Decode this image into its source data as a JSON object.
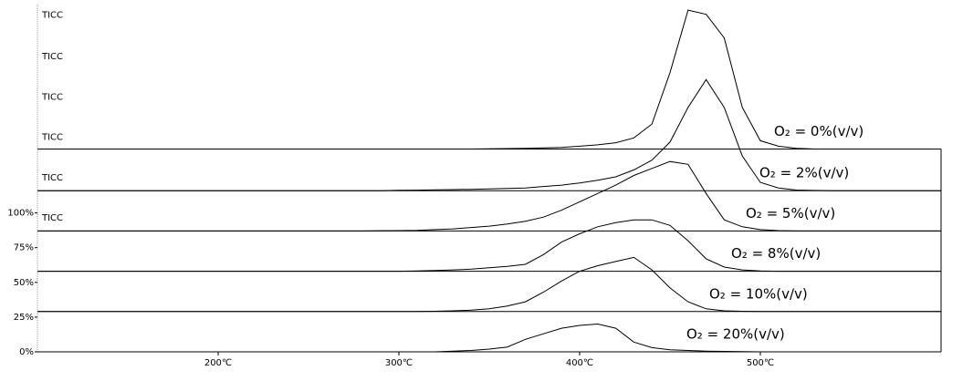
{
  "chart_data": {
    "type": "line",
    "x": [
      100,
      110,
      120,
      130,
      140,
      150,
      160,
      170,
      180,
      190,
      200,
      210,
      220,
      230,
      240,
      250,
      260,
      270,
      280,
      290,
      300,
      310,
      320,
      330,
      340,
      350,
      360,
      370,
      380,
      390,
      400,
      410,
      420,
      430,
      440,
      450,
      460,
      470,
      480,
      490,
      500,
      510,
      520,
      530,
      540,
      550,
      560,
      570,
      580,
      590,
      600
    ],
    "xlim": [
      100,
      600
    ],
    "xticks": [
      {
        "value": 200,
        "label": "200℃"
      },
      {
        "value": 300,
        "label": "300℃"
      },
      {
        "value": 400,
        "label": "400℃"
      },
      {
        "value": 500,
        "label": "500℃"
      }
    ],
    "ylim": [
      0,
      250
    ],
    "yticks": [
      {
        "value": 0,
        "label": "0%"
      },
      {
        "value": 25,
        "label": "25%"
      },
      {
        "value": 50,
        "label": "50%"
      },
      {
        "value": 75,
        "label": "75%"
      },
      {
        "value": 100,
        "label": "100%"
      }
    ],
    "series": [
      {
        "name": "O₂ = 0%(v/v)",
        "label": "TICC",
        "color": "#000000",
        "offset": 146,
        "values": [
          0,
          0,
          0,
          0,
          0,
          0,
          0,
          0,
          0,
          0,
          0,
          0,
          0,
          0,
          0,
          0,
          0,
          0,
          0,
          0,
          0,
          0,
          0,
          0,
          0,
          0.2,
          0.3,
          0.5,
          0.8,
          1.2,
          2,
          3,
          4.5,
          8,
          18,
          55,
          100,
          97,
          80,
          30,
          6,
          2,
          0.5,
          0,
          0,
          0,
          0,
          0,
          0,
          0,
          0
        ]
      },
      {
        "name": "O₂ = 2%(v/v)",
        "label": "TICC",
        "color": "#000000",
        "offset": 116,
        "values": [
          0,
          0,
          0,
          0,
          0,
          0,
          0,
          0,
          0,
          0,
          0,
          0,
          0,
          0,
          0,
          0,
          0,
          0,
          0,
          0,
          0.3,
          0.4,
          0.6,
          0.8,
          1,
          1.3,
          1.6,
          2,
          3,
          4,
          5.5,
          7.5,
          10,
          15,
          22,
          35,
          60,
          80,
          60,
          25,
          6,
          2,
          0.5,
          0.2,
          0,
          0,
          0,
          0,
          0,
          0,
          0
        ]
      },
      {
        "name": "O₂ = 5%(v/v)",
        "label": "TICC",
        "color": "#000000",
        "offset": 87,
        "values": [
          0,
          0,
          0,
          0,
          0,
          0,
          0,
          0,
          0,
          0,
          0,
          0,
          0,
          0,
          0,
          0,
          0,
          0,
          0,
          0.2,
          0.3,
          0.5,
          1,
          1.5,
          2.5,
          3.5,
          5,
          7,
          10,
          15,
          21,
          27,
          33,
          40,
          45,
          50,
          48,
          27,
          8,
          3,
          1,
          0.3,
          0,
          0,
          0,
          0,
          0,
          0,
          0,
          0,
          0
        ]
      },
      {
        "name": "O₂ = 8%(v/v)",
        "label": "TICC",
        "color": "#000000",
        "offset": 58,
        "values": [
          0,
          0,
          0,
          0,
          0,
          0,
          0,
          0,
          0,
          0,
          0,
          0,
          0,
          0,
          0,
          0,
          0,
          0,
          0,
          0,
          0,
          0.2,
          0.5,
          1,
          1.5,
          2.5,
          3.5,
          5,
          12,
          21,
          27,
          32,
          35,
          37,
          37,
          33,
          22,
          9,
          3,
          1,
          0.3,
          0,
          0,
          0,
          0,
          0,
          0,
          0,
          0,
          0,
          0
        ]
      },
      {
        "name": "O₂ = 10%(v/v)",
        "label": "TICC",
        "color": "#000000",
        "offset": 29,
        "values": [
          0,
          0,
          0,
          0,
          0,
          0,
          0,
          0,
          0,
          0,
          0,
          0,
          0,
          0,
          0,
          0,
          0,
          0,
          0,
          0,
          0,
          0,
          0.2,
          0.5,
          1,
          2,
          4,
          7,
          14,
          22,
          29,
          33,
          36,
          39,
          30,
          17,
          7,
          2,
          0.5,
          0.2,
          0,
          0,
          0,
          0,
          0,
          0,
          0,
          0,
          0,
          0,
          0
        ]
      },
      {
        "name": "O₂ = 20%(v/v)",
        "label": "TICC",
        "color": "#000000",
        "offset": 0,
        "values": [
          0,
          0,
          0,
          0,
          0,
          0,
          0,
          0,
          0,
          0,
          0,
          0,
          0,
          0,
          0,
          0,
          0,
          0,
          0,
          0,
          0,
          0,
          0,
          0.5,
          1,
          2,
          3.5,
          9,
          13,
          17,
          19,
          20,
          17,
          7,
          3,
          1.5,
          1,
          0.5,
          0.3,
          0.1,
          0,
          0,
          0,
          0,
          0,
          0,
          0,
          0,
          0,
          0,
          0
        ]
      }
    ]
  }
}
